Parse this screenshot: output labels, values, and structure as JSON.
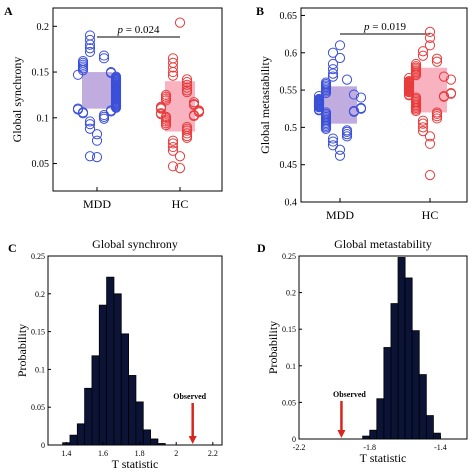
{
  "chart_data": [
    {
      "panel": "A",
      "type": "scatter",
      "ylabel": "Global synchrony",
      "ylim": [
        0.02,
        0.22
      ],
      "yticks": [
        "0.05",
        "0.1",
        "0.15",
        "0.2"
      ],
      "yticks_values": [
        0.05,
        0.1,
        0.15,
        0.2
      ],
      "categories": [
        "MDD",
        "HC"
      ],
      "pvalue": "= 0.024",
      "series": [
        {
          "color": "#3b4fd8",
          "box": {
            "q1": 0.11,
            "q3": 0.15
          },
          "values": [
            0.057,
            0.058,
            0.075,
            0.082,
            0.088,
            0.093,
            0.096,
            0.099,
            0.101,
            0.103,
            0.105,
            0.106,
            0.107,
            0.108,
            0.109,
            0.11,
            0.111,
            0.112,
            0.113,
            0.114,
            0.115,
            0.116,
            0.117,
            0.118,
            0.119,
            0.12,
            0.121,
            0.122,
            0.123,
            0.124,
            0.125,
            0.126,
            0.127,
            0.128,
            0.129,
            0.13,
            0.131,
            0.132,
            0.133,
            0.134,
            0.135,
            0.136,
            0.137,
            0.138,
            0.139,
            0.14,
            0.141,
            0.142,
            0.143,
            0.144,
            0.145,
            0.147,
            0.149,
            0.15,
            0.152,
            0.154,
            0.156,
            0.158,
            0.16,
            0.162,
            0.165,
            0.168,
            0.172,
            0.176,
            0.18,
            0.185,
            0.19
          ]
        },
        {
          "color": "#e83c3c",
          "box": {
            "q1": 0.085,
            "q3": 0.14
          },
          "values": [
            0.045,
            0.047,
            0.058,
            0.064,
            0.068,
            0.072,
            0.075,
            0.078,
            0.08,
            0.083,
            0.086,
            0.088,
            0.09,
            0.092,
            0.094,
            0.096,
            0.098,
            0.1,
            0.101,
            0.102,
            0.103,
            0.104,
            0.105,
            0.106,
            0.107,
            0.108,
            0.11,
            0.111,
            0.112,
            0.114,
            0.115,
            0.117,
            0.119,
            0.121,
            0.123,
            0.125,
            0.128,
            0.13,
            0.133,
            0.136,
            0.139,
            0.142,
            0.146,
            0.15,
            0.155,
            0.16,
            0.165,
            0.204
          ]
        }
      ]
    },
    {
      "panel": "B",
      "type": "scatter",
      "ylabel": "Global metastability",
      "ylim": [
        0.4,
        0.66
      ],
      "yticks": [
        "0.4",
        "0.45",
        "0.5",
        "0.55",
        "0.6",
        "0.65"
      ],
      "yticks_values": [
        0.4,
        0.45,
        0.5,
        0.55,
        0.6,
        0.65
      ],
      "categories": [
        "MDD",
        "HC"
      ],
      "pvalue": "= 0.019",
      "series": [
        {
          "color": "#3b4fd8",
          "box": {
            "q1": 0.505,
            "q3": 0.555
          },
          "values": [
            0.462,
            0.47,
            0.476,
            0.481,
            0.485,
            0.488,
            0.491,
            0.494,
            0.496,
            0.498,
            0.5,
            0.502,
            0.504,
            0.506,
            0.508,
            0.51,
            0.512,
            0.514,
            0.516,
            0.518,
            0.52,
            0.521,
            0.522,
            0.523,
            0.524,
            0.525,
            0.526,
            0.527,
            0.528,
            0.529,
            0.53,
            0.531,
            0.532,
            0.533,
            0.534,
            0.535,
            0.536,
            0.537,
            0.538,
            0.54,
            0.542,
            0.544,
            0.546,
            0.548,
            0.55,
            0.552,
            0.554,
            0.556,
            0.558,
            0.56,
            0.564,
            0.568,
            0.572,
            0.578,
            0.585,
            0.593,
            0.6,
            0.61
          ]
        },
        {
          "color": "#e83c3c",
          "box": {
            "q1": 0.52,
            "q3": 0.58
          },
          "values": [
            0.436,
            0.478,
            0.488,
            0.495,
            0.5,
            0.505,
            0.509,
            0.512,
            0.515,
            0.518,
            0.52,
            0.522,
            0.524,
            0.526,
            0.528,
            0.53,
            0.532,
            0.534,
            0.536,
            0.538,
            0.54,
            0.541,
            0.542,
            0.543,
            0.544,
            0.545,
            0.546,
            0.547,
            0.548,
            0.549,
            0.55,
            0.551,
            0.552,
            0.553,
            0.554,
            0.555,
            0.556,
            0.557,
            0.558,
            0.559,
            0.56,
            0.561,
            0.562,
            0.564,
            0.566,
            0.568,
            0.57,
            0.572,
            0.574,
            0.576,
            0.578,
            0.58,
            0.582,
            0.585,
            0.588,
            0.592,
            0.596,
            0.602,
            0.61,
            0.62,
            0.628
          ]
        }
      ]
    },
    {
      "panel": "C",
      "type": "bar",
      "title": "Global synchrony",
      "xlabel": "T statistic",
      "ylabel": "Probability",
      "xlim": [
        1.3,
        2.25
      ],
      "ylim": [
        0,
        0.25
      ],
      "xticks": [
        "1.4",
        "1.6",
        "1.8",
        "2",
        "2.2"
      ],
      "xticks_values": [
        1.4,
        1.6,
        1.8,
        2.0,
        2.2
      ],
      "yticks": [
        "0",
        "0.05",
        "0.1",
        "0.15",
        "0.2",
        "0.25"
      ],
      "yticks_values": [
        0,
        0.05,
        0.1,
        0.15,
        0.2,
        0.25
      ],
      "bin_edges": [
        1.38,
        1.42,
        1.46,
        1.5,
        1.54,
        1.58,
        1.62,
        1.66,
        1.7,
        1.74,
        1.78,
        1.82,
        1.86,
        1.9,
        1.94
      ],
      "values": [
        0.003,
        0.013,
        0.028,
        0.075,
        0.118,
        0.185,
        0.222,
        0.2,
        0.147,
        0.092,
        0.057,
        0.02,
        0.008,
        0.002
      ],
      "observed": {
        "label": "Observed",
        "x": 2.09
      }
    },
    {
      "panel": "D",
      "type": "bar",
      "title": "Global metastability",
      "xlabel": "T statistic",
      "ylabel": "Probability",
      "xlim": [
        -2.2,
        -1.25
      ],
      "ylim": [
        0,
        0.25
      ],
      "xticks": [
        "-2.2",
        "-1.8",
        "-1.4"
      ],
      "xticks_values": [
        -2.2,
        -1.8,
        -1.4
      ],
      "yticks": [
        "0",
        "0.05",
        "0.1",
        "0.15",
        "0.2",
        "0.25"
      ],
      "yticks_values": [
        0,
        0.05,
        0.1,
        0.15,
        0.2,
        0.25
      ],
      "bin_edges": [
        -1.84,
        -1.8,
        -1.76,
        -1.72,
        -1.68,
        -1.64,
        -1.6,
        -1.56,
        -1.52,
        -1.48,
        -1.44,
        -1.4
      ],
      "values": [
        0.004,
        0.012,
        0.055,
        0.125,
        0.185,
        0.248,
        0.22,
        0.148,
        0.088,
        0.032,
        0.008
      ],
      "observed": {
        "label": "Observed",
        "x": -1.96
      }
    }
  ],
  "labels": {
    "p_italic": "p",
    "panel_a": "A",
    "panel_b": "B",
    "panel_c": "C",
    "panel_d": "D"
  },
  "colors": {
    "mdd": "#3b4fd8",
    "hc": "#e83c3c",
    "mdd_box": "#b9a3dc",
    "hc_box": "#f7aab9",
    "histogram_fill": "#0b1436",
    "arrow": "#d9261c"
  }
}
